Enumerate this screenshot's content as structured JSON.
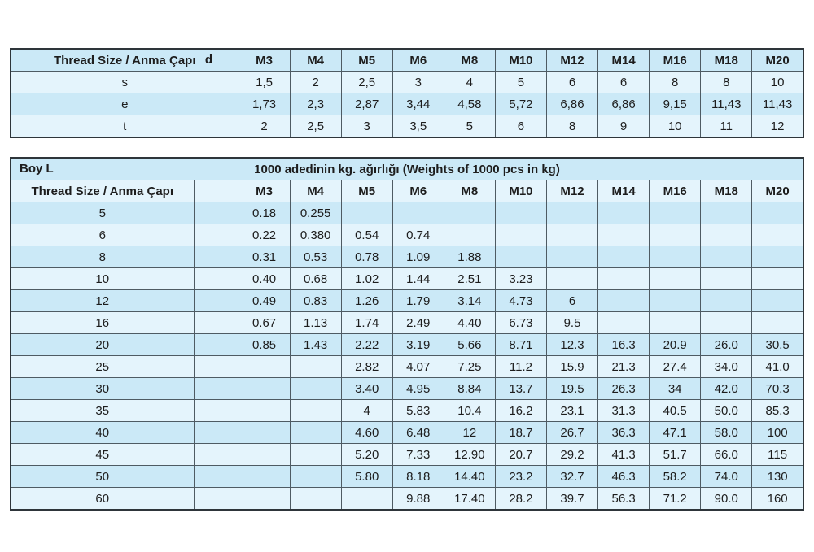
{
  "colors": {
    "row_dark": "#cbe9f7",
    "row_light": "#e4f4fc",
    "border_inner": "#4e5b63",
    "border_outer": "#2e353a",
    "text": "#1d1d1d",
    "page_background": "#ffffff"
  },
  "dimensions_table": {
    "header_label": "Thread Size / Anma Çapı",
    "d_label": "d",
    "columns": [
      "M3",
      "M4",
      "M5",
      "M6",
      "M8",
      "M10",
      "M12",
      "M14",
      "M16",
      "M18",
      "M20"
    ],
    "rows": [
      {
        "label": "s",
        "values": [
          "1,5",
          "2",
          "2,5",
          "3",
          "4",
          "5",
          "6",
          "6",
          "8",
          "8",
          "10"
        ]
      },
      {
        "label": "e",
        "values": [
          "1,73",
          "2,3",
          "2,87",
          "3,44",
          "4,58",
          "5,72",
          "6,86",
          "6,86",
          "9,15",
          "11,43",
          "11,43"
        ]
      },
      {
        "label": "t",
        "values": [
          "2",
          "2,5",
          "3",
          "3,5",
          "5",
          "6",
          "8",
          "9",
          "10",
          "11",
          "12"
        ]
      }
    ]
  },
  "weights_table": {
    "title_left": "Boy L",
    "title_center": "1000 adedinin kg. ağırlığı (Weights of 1000 pcs in kg)",
    "header_label": "Thread Size / Anma Çapı",
    "columns": [
      "M3",
      "M4",
      "M5",
      "M6",
      "M8",
      "M10",
      "M12",
      "M14",
      "M16",
      "M18",
      "M20"
    ],
    "rows": [
      {
        "label": "5",
        "values": [
          "0.18",
          "0.255",
          "",
          "",
          "",
          "",
          "",
          "",
          "",
          "",
          ""
        ]
      },
      {
        "label": "6",
        "values": [
          "0.22",
          "0.380",
          "0.54",
          "0.74",
          "",
          "",
          "",
          "",
          "",
          "",
          ""
        ]
      },
      {
        "label": "8",
        "values": [
          "0.31",
          "0.53",
          "0.78",
          "1.09",
          "1.88",
          "",
          "",
          "",
          "",
          "",
          ""
        ]
      },
      {
        "label": "10",
        "values": [
          "0.40",
          "0.68",
          "1.02",
          "1.44",
          "2.51",
          "3.23",
          "",
          "",
          "",
          "",
          ""
        ]
      },
      {
        "label": "12",
        "values": [
          "0.49",
          "0.83",
          "1.26",
          "1.79",
          "3.14",
          "4.73",
          "6",
          "",
          "",
          "",
          ""
        ]
      },
      {
        "label": "16",
        "values": [
          "0.67",
          "1.13",
          "1.74",
          "2.49",
          "4.40",
          "6.73",
          "9.5",
          "",
          "",
          "",
          ""
        ]
      },
      {
        "label": "20",
        "values": [
          "0.85",
          "1.43",
          "2.22",
          "3.19",
          "5.66",
          "8.71",
          "12.3",
          "16.3",
          "20.9",
          "26.0",
          "30.5"
        ]
      },
      {
        "label": "25",
        "values": [
          "",
          "",
          "2.82",
          "4.07",
          "7.25",
          "11.2",
          "15.9",
          "21.3",
          "27.4",
          "34.0",
          "41.0"
        ]
      },
      {
        "label": "30",
        "values": [
          "",
          "",
          "3.40",
          "4.95",
          "8.84",
          "13.7",
          "19.5",
          "26.3",
          "34",
          "42.0",
          "70.3"
        ]
      },
      {
        "label": "35",
        "values": [
          "",
          "",
          "4",
          "5.83",
          "10.4",
          "16.2",
          "23.1",
          "31.3",
          "40.5",
          "50.0",
          "85.3"
        ]
      },
      {
        "label": "40",
        "values": [
          "",
          "",
          "4.60",
          "6.48",
          "12",
          "18.7",
          "26.7",
          "36.3",
          "47.1",
          "58.0",
          "100"
        ]
      },
      {
        "label": "45",
        "values": [
          "",
          "",
          "5.20",
          "7.33",
          "12.90",
          "20.7",
          "29.2",
          "41.3",
          "51.7",
          "66.0",
          "115"
        ]
      },
      {
        "label": "50",
        "values": [
          "",
          "",
          "5.80",
          "8.18",
          "14.40",
          "23.2",
          "32.7",
          "46.3",
          "58.2",
          "74.0",
          "130"
        ]
      },
      {
        "label": "60",
        "values": [
          "",
          "",
          "",
          "9.88",
          "17.40",
          "28.2",
          "39.7",
          "56.3",
          "71.2",
          "90.0",
          "160"
        ]
      }
    ]
  }
}
